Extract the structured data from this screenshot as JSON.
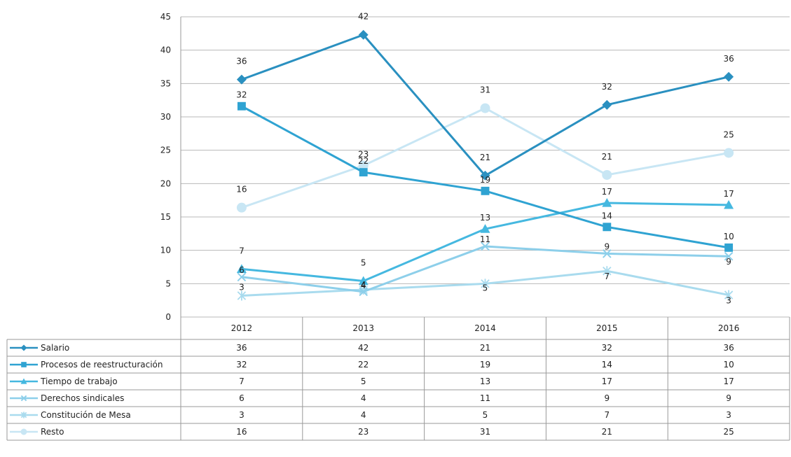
{
  "chart_data": {
    "type": "line",
    "categories": [
      "2012",
      "2013",
      "2014",
      "2015",
      "2016"
    ],
    "ylim": [
      0,
      45
    ],
    "yticks": [
      0,
      5,
      10,
      15,
      20,
      25,
      30,
      35,
      40,
      45
    ],
    "grid": true,
    "legend_placement": "data-table-left",
    "data_table": true,
    "series": [
      {
        "name": "Salario",
        "values": [
          36,
          42,
          21,
          32,
          36
        ],
        "plotted": [
          35.6,
          42.3,
          21.2,
          31.8,
          36.0
        ],
        "color": "#2a90c0",
        "marker": "diamond-icon"
      },
      {
        "name": "Procesos de reestructuración",
        "values": [
          32,
          22,
          19,
          14,
          10
        ],
        "plotted": [
          31.6,
          21.7,
          18.9,
          13.5,
          10.4
        ],
        "color": "#2fa3d2",
        "marker": "square-icon"
      },
      {
        "name": "Tiempo de trabajo",
        "values": [
          7,
          5,
          13,
          17,
          17
        ],
        "plotted": [
          7.2,
          5.4,
          13.2,
          17.1,
          16.8
        ],
        "color": "#45b8e0",
        "marker": "triangle-icon"
      },
      {
        "name": "Derechos sindicales",
        "values": [
          6,
          4,
          11,
          9,
          9
        ],
        "plotted": [
          6.0,
          3.8,
          10.6,
          9.5,
          9.1
        ],
        "color": "#8dcfea",
        "marker": "x-icon"
      },
      {
        "name": "Constitución de Mesa",
        "values": [
          3,
          4,
          5,
          7,
          3
        ],
        "plotted": [
          3.2,
          4.1,
          5.0,
          6.9,
          3.3
        ],
        "color": "#a9dbee",
        "marker": "star-icon"
      },
      {
        "name": "Resto",
        "values": [
          16,
          23,
          31,
          21,
          25
        ],
        "plotted": [
          16.4,
          22.7,
          31.3,
          21.3,
          24.6
        ],
        "color": "#c8e6f4",
        "marker": "circle-icon"
      }
    ]
  }
}
